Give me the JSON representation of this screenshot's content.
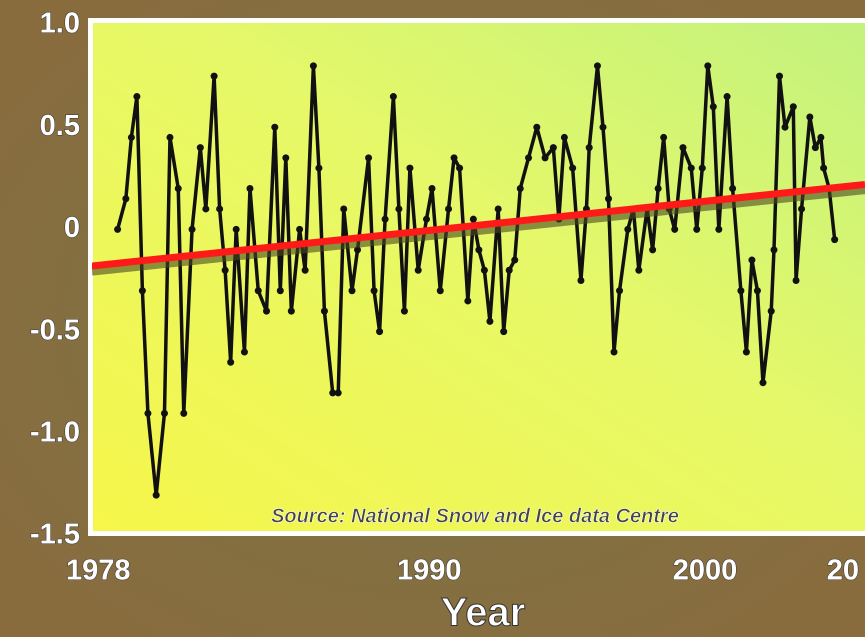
{
  "chart_data": {
    "type": "line",
    "xlabel": "Year",
    "annotation": "Source: National Snow and Ice data Centre",
    "xlim": [
      1977.7,
      2005.8
    ],
    "ylim": [
      -1.5,
      1.0
    ],
    "xticks": [
      1978,
      1990,
      2000,
      {
        "value": 2005,
        "label": "20"
      }
    ],
    "yticks": [
      {
        "value": 1,
        "label": "1.0"
      },
      0.5,
      0,
      -0.5,
      {
        "value": -1,
        "label": "-1.0"
      },
      -1.5
    ],
    "series": [
      {
        "color": "#111111",
        "x": [
          1978.7,
          1979.0,
          1979.2,
          1979.4,
          1979.6,
          1979.8,
          1980.1,
          1980.4,
          1980.6,
          1980.9,
          1981.1,
          1981.4,
          1981.7,
          1981.9,
          1982.2,
          1982.4,
          1982.6,
          1982.8,
          1983.0,
          1983.3,
          1983.5,
          1983.8,
          1984.1,
          1984.4,
          1984.6,
          1984.8,
          1985.0,
          1985.3,
          1985.5,
          1985.8,
          1986.0,
          1986.2,
          1986.5,
          1986.7,
          1986.9,
          1987.2,
          1987.4,
          1987.8,
          1988.0,
          1988.2,
          1988.4,
          1988.7,
          1988.9,
          1989.1,
          1989.3,
          1989.6,
          1989.9,
          1990.1,
          1990.4,
          1990.7,
          1990.9,
          1991.1,
          1991.4,
          1991.6,
          1991.8,
          1992.0,
          1992.2,
          1992.5,
          1992.7,
          1992.9,
          1993.1,
          1993.3,
          1993.6,
          1993.9,
          1994.2,
          1994.5,
          1994.7,
          1994.9,
          1995.2,
          1995.5,
          1995.7,
          1995.8,
          1996.1,
          1996.3,
          1996.5,
          1996.7,
          1996.9,
          1997.2,
          1997.4,
          1997.6,
          1997.9,
          1998.1,
          1998.3,
          1998.5,
          1998.7,
          1998.9,
          1999.2,
          1999.5,
          1999.7,
          1999.9,
          2000.1,
          2000.3,
          2000.5,
          2000.8,
          2001.0,
          2001.3,
          2001.5,
          2001.7,
          2001.9,
          2002.1,
          2002.4,
          2002.5,
          2002.7,
          2002.9,
          2003.2,
          2003.3,
          2003.5,
          2003.8,
          2004.0,
          2004.2,
          2004.3,
          2004.5,
          2004.7
        ],
        "values": [
          0,
          0.15,
          0.45,
          0.65,
          -0.3,
          -0.9,
          -1.3,
          -0.9,
          0.45,
          0.2,
          -0.9,
          0,
          0.4,
          0.1,
          0.75,
          0.1,
          -0.2,
          -0.65,
          0,
          -0.6,
          0.2,
          -0.3,
          -0.4,
          0.5,
          -0.3,
          0.35,
          -0.4,
          0,
          -0.2,
          0.8,
          0.3,
          -0.4,
          -0.8,
          -0.8,
          0.1,
          -0.3,
          -0.1,
          0.35,
          -0.3,
          -0.5,
          0.05,
          0.65,
          0.1,
          -0.4,
          0.3,
          -0.2,
          0.05,
          0.2,
          -0.3,
          0.1,
          0.35,
          0.3,
          -0.35,
          0.05,
          -0.1,
          -0.2,
          -0.45,
          0.1,
          -0.5,
          -0.2,
          -0.15,
          0.2,
          0.35,
          0.5,
          0.35,
          0.4,
          0.05,
          0.45,
          0.3,
          -0.25,
          0.1,
          0.4,
          0.8,
          0.5,
          0.15,
          -0.6,
          -0.3,
          0,
          0.1,
          -0.2,
          0.1,
          -0.1,
          0.2,
          0.45,
          0.1,
          0,
          0.4,
          0.3,
          0,
          0.3,
          0.8,
          0.6,
          0,
          0.65,
          0.2,
          -0.3,
          -0.6,
          -0.15,
          -0.3,
          -0.75,
          -0.4,
          -0.1,
          0.75,
          0.5,
          0.6,
          -0.25,
          0.1,
          0.55,
          0.4,
          0.45,
          0.3,
          0.2,
          -0.05
        ]
      },
      {
        "color": "#ff1a1a",
        "x": [
          1977.7,
          2005.8
        ],
        "values": [
          -0.18,
          0.22
        ]
      }
    ]
  }
}
